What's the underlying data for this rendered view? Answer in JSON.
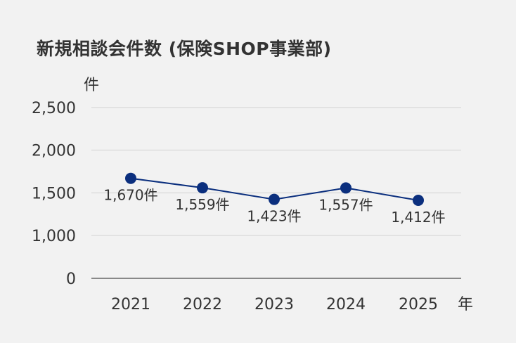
{
  "chart_data": {
    "type": "line",
    "title": "新規相談会件数 (保険SHOP事業部)",
    "xlabel": "年",
    "ylabel": "件",
    "categories": [
      "2021",
      "2022",
      "2023",
      "2024",
      "2025"
    ],
    "series": [
      {
        "values": [
          1670,
          1559,
          1423,
          1557,
          1412
        ],
        "data_labels": [
          "1,670件",
          "1,559件",
          "1,423件",
          "1,557件",
          "1,412件"
        ]
      }
    ],
    "yticks": [
      0,
      1000,
      1500,
      2000,
      2500
    ],
    "ytick_labels": [
      "0",
      "1,000",
      "1,500",
      "2,000",
      "2,500"
    ],
    "ylim": [
      0,
      2500
    ],
    "y_axis_broken_between": [
      0,
      1000
    ],
    "grid": true,
    "legend": "none",
    "colors": {
      "line": "#0b2f7e",
      "marker": "#0b2f7e",
      "grid": "#d2d2d2",
      "axis": "#666666",
      "background": "#f2f2f2"
    }
  }
}
